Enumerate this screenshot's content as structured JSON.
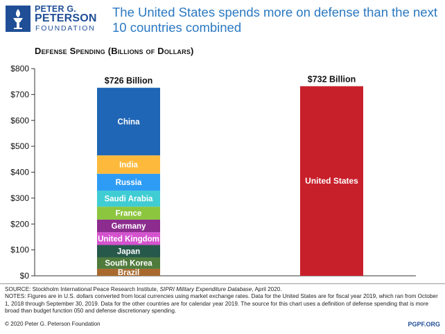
{
  "logo": {
    "line1": "PETER G.",
    "line2": "PETERSON",
    "line3": "FOUNDATION"
  },
  "title": "The United States spends more on defense than the next 10 countries combined",
  "chart_data": {
    "type": "bar",
    "subtitle": "Defense Spending (Billions of Dollars)",
    "ylim": [
      0,
      800
    ],
    "yticks": [
      0,
      100,
      200,
      300,
      400,
      500,
      600,
      700,
      800
    ],
    "ytick_labels": [
      "$0",
      "$100",
      "$200",
      "$300",
      "$400",
      "$500",
      "$600",
      "$700",
      "$800"
    ],
    "grid": false,
    "legend": "none",
    "bars": [
      {
        "label": "",
        "total_label": "$726 Billion",
        "total": 726,
        "stacked": true,
        "segments": [
          {
            "name": "Brazil",
            "value": 27,
            "color": "#a9692e"
          },
          {
            "name": "South Korea",
            "value": 44,
            "color": "#4f7b3c"
          },
          {
            "name": "Japan",
            "value": 48,
            "color": "#27594b"
          },
          {
            "name": "United Kingdom",
            "value": 49,
            "color": "#d552cf"
          },
          {
            "name": "Germany",
            "value": 49,
            "color": "#8c2c8e"
          },
          {
            "name": "France",
            "value": 50,
            "color": "#8cc63f"
          },
          {
            "name": "Saudi Arabia",
            "value": 62,
            "color": "#40ccd3"
          },
          {
            "name": "Russia",
            "value": 65,
            "color": "#2e9cf5"
          },
          {
            "name": "India",
            "value": 71,
            "color": "#fcb93b"
          },
          {
            "name": "China",
            "value": 261,
            "color": "#2066b6"
          }
        ]
      },
      {
        "label": "United States",
        "total_label": "$732 Billion",
        "total": 732,
        "stacked": false,
        "color": "#c8202b"
      }
    ]
  },
  "footer": {
    "source_prefix": "SOURCE: Stockholm International Peace Research Institute, ",
    "source_italic": "SIPRI Military Expenditure Database",
    "source_suffix": ", April 2020.",
    "notes": "NOTES: Figures are in U.S. dollars converted from local currencies using market exchange rates. Data for the United States are for fiscal year 2019, which ran from October 1, 2018 through September 30, 2019. Data for the other countries are for calendar year 2019. The source for this chart uses a definition of defense spending that is more broad than budget function 050 and defense discretionary spending.",
    "copyright": "© 2020 Peter G. Peterson Foundation",
    "website": "PGPF.ORG"
  }
}
